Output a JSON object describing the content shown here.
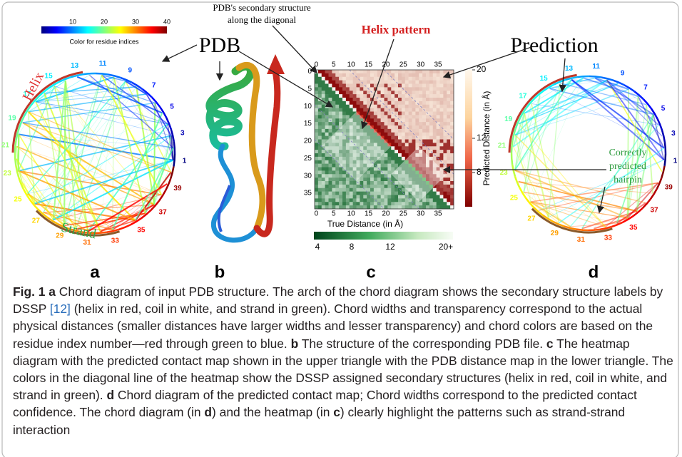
{
  "panel_a": {
    "colorbar_ticks": [
      10,
      20,
      30,
      40
    ],
    "colorbar_label": "Color for residue indices",
    "helix_label": "Helix",
    "strand_label": "Strand",
    "residue_labels": [
      1,
      3,
      5,
      7,
      9,
      11,
      13,
      15,
      17,
      19,
      21,
      23,
      25,
      27,
      29,
      31,
      33,
      35,
      37,
      39
    ]
  },
  "annotations": {
    "pdb": "PDB",
    "secondary_structure": [
      "PDB's secondary structure",
      "along the diagonal"
    ],
    "helix_pattern": "Helix pattern",
    "prediction": "Prediction",
    "hairpin": [
      "Correctly",
      "predicted",
      "hairpin"
    ]
  },
  "panel_c": {
    "top_ticks": [
      0,
      5,
      10,
      15,
      20,
      25,
      30,
      35
    ],
    "left_ticks": [
      0,
      5,
      10,
      15,
      20,
      25,
      30,
      35
    ],
    "bottom_ticks": [
      0,
      5,
      10,
      15,
      20,
      25,
      30,
      35
    ],
    "x_label": "True Distance (in Å)",
    "pred_colorbar_label": "Predicted Distance (in Å)",
    "pred_colorbar_ticks": [
      20,
      12,
      8
    ],
    "true_colorbar_ticks": [
      4,
      8,
      12,
      "20+"
    ]
  },
  "panel_d": {
    "residue_labels": [
      1,
      3,
      5,
      7,
      9,
      11,
      13,
      15,
      17,
      19,
      21,
      23,
      25,
      27,
      29,
      31,
      33,
      35,
      37,
      39
    ]
  },
  "panel_letters": [
    "a",
    "b",
    "c",
    "d"
  ],
  "caption": {
    "label": "Fig. 1",
    "segments": [
      {
        "bold": "a"
      },
      {
        "text": " Chord diagram of input PDB structure. The arch of the chord diagram shows the secondary structure labels by DSSP "
      },
      {
        "ref": "[12]"
      },
      {
        "text": " (helix in red, coil in white, and strand in green). Chord widths and transparency correspond to the actual physical distances (smaller distances have larger widths and lesser transparency) and chord colors are based on the residue index number—red through green to blue. "
      },
      {
        "bold": "b"
      },
      {
        "text": " The structure of the corresponding PDB file. "
      },
      {
        "bold": "c"
      },
      {
        "text": " The heatmap diagram with the predicted contact map shown in the upper triangle with the PDB distance map in the lower triangle. The colors in the diagonal line of the heatmap show the DSSP assigned secondary structures (helix in red, coil in white, and strand in green). "
      },
      {
        "bold": "d"
      },
      {
        "text": " Chord diagram of the predicted contact map; Chord widths correspond to the predicted contact confidence. The chord diagram (in "
      },
      {
        "bold": "d"
      },
      {
        "text": ") and the heatmap (in "
      },
      {
        "bold": "c"
      },
      {
        "text": ") clearly highlight the patterns such as strand-strand interaction"
      }
    ]
  }
}
